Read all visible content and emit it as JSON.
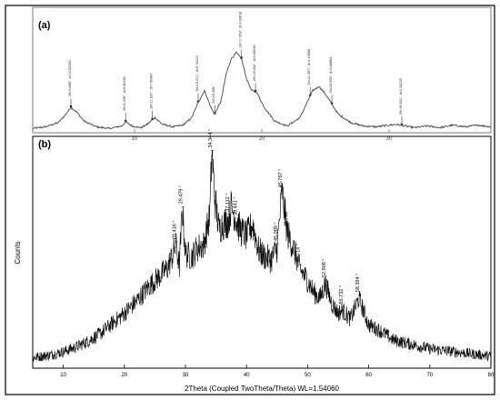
{
  "figure": {
    "panels": [
      {
        "label": "(a)",
        "x_ticks": [
          10,
          20,
          30
        ],
        "peak_annotations": [
          {
            "x": 5.0,
            "text": "2θ=5.686°, d=15.53330"
          },
          {
            "x": 9.3,
            "text": "2θ=9.299°, d=9.50236"
          },
          {
            "x": 11.4,
            "text": "2θ=11.637°, d=7.60487"
          },
          {
            "x": 15.0,
            "text": "2θ=15.011°, d=5.76222"
          },
          {
            "x": 16.3,
            "text": "2θ=16.288°"
          },
          {
            "x": 18.4,
            "text": "2θ=17.953°, d=4.93618"
          },
          {
            "x": 19.5,
            "text": "2θ=19.032°, d=4.65930"
          },
          {
            "x": 23.8,
            "text": "2θ=21.357°, d=4.15695"
          },
          {
            "x": 25.5,
            "text": "2θ=23.953°, d=3.68864"
          },
          {
            "x": 31.0,
            "text": "2θ=30.631°, d=2.94233"
          }
        ]
      },
      {
        "label": "(b)",
        "ylabel": "Counts",
        "xlabel": "2Theta (Coupled TwoTheta/Theta) WL=1.54060",
        "x_ticks": [
          10,
          20,
          30,
          40,
          50,
          60,
          70,
          80
        ],
        "peak_labels": [
          {
            "x": 29.479,
            "text": "29.479 °"
          },
          {
            "x": 28.416,
            "text": "28.416 °"
          },
          {
            "x": 34.344,
            "text": "34.344 °"
          },
          {
            "x": 37.112,
            "text": "37.112 °"
          },
          {
            "x": 38.441,
            "text": "38.441 °"
          },
          {
            "x": 45.009,
            "text": "45.009 °"
          },
          {
            "x": 45.767,
            "text": "45.767 °"
          },
          {
            "x": 46.709,
            "text": "46.709 °"
          },
          {
            "x": 48.714,
            "text": "48.714 °"
          },
          {
            "x": 52.908,
            "text": "52.908 °"
          },
          {
            "x": 55.732,
            "text": "55.732 °"
          },
          {
            "x": 58.394,
            "text": "58.394 °"
          }
        ]
      }
    ]
  },
  "chart_data": [
    {
      "type": "line",
      "panel": "(a)",
      "xlim": [
        2,
        38
      ],
      "grid": false,
      "x": [
        2,
        3,
        4,
        4.5,
        5,
        5.5,
        6,
        7,
        8,
        9,
        9.3,
        9.8,
        10.5,
        11,
        11.6,
        12.2,
        13,
        13.8,
        14.5,
        15,
        15.5,
        16,
        16.3,
        16.8,
        17.2,
        17.6,
        18,
        18.4,
        18.8,
        19.2,
        19.6,
        20.2,
        21,
        22,
        23,
        23.5,
        24,
        24.5,
        25,
        25.5,
        26,
        27,
        28,
        29,
        30,
        30.6,
        31.2,
        32,
        33,
        34,
        35,
        36,
        37,
        38
      ],
      "y": [
        5,
        7,
        12,
        20,
        30,
        24,
        14,
        7,
        5,
        8,
        13,
        8,
        6,
        10,
        18,
        10,
        7,
        9,
        18,
        36,
        50,
        30,
        22,
        38,
        70,
        88,
        95,
        88,
        64,
        50,
        48,
        30,
        14,
        8,
        18,
        34,
        50,
        55,
        46,
        34,
        22,
        12,
        8,
        7,
        9,
        10,
        8,
        6,
        8,
        6,
        9,
        7,
        9,
        7
      ]
    },
    {
      "type": "line",
      "panel": "(b)",
      "xlabel": "2Theta (Coupled TwoTheta/Theta) WL=1.54060",
      "ylabel": "Counts",
      "xlim": [
        5,
        80
      ],
      "grid": false,
      "x": [
        5,
        8,
        10,
        12,
        14,
        16,
        18,
        20,
        22,
        24,
        26,
        27,
        28,
        28.4,
        29,
        29.5,
        30,
        31,
        32,
        33,
        34,
        34.3,
        34.8,
        35.5,
        36,
        37,
        37.5,
        38.4,
        39,
        40,
        41,
        42,
        43,
        44,
        45,
        45.8,
        46.7,
        47.5,
        48.7,
        50,
        51,
        52,
        52.9,
        54,
        55,
        55.7,
        57,
        58.4,
        60,
        62,
        64,
        66,
        68,
        70,
        72,
        74,
        76,
        78,
        80
      ],
      "y": [
        4,
        6,
        8,
        11,
        15,
        20,
        27,
        34,
        42,
        52,
        60,
        64,
        74,
        80,
        66,
        105,
        74,
        72,
        78,
        80,
        100,
        144,
        112,
        90,
        94,
        96,
        106,
        96,
        90,
        86,
        94,
        76,
        72,
        70,
        78,
        116,
        88,
        80,
        64,
        56,
        48,
        44,
        54,
        40,
        34,
        36,
        30,
        44,
        26,
        22,
        16,
        14,
        12,
        10,
        9,
        8,
        7,
        6,
        5
      ]
    }
  ]
}
